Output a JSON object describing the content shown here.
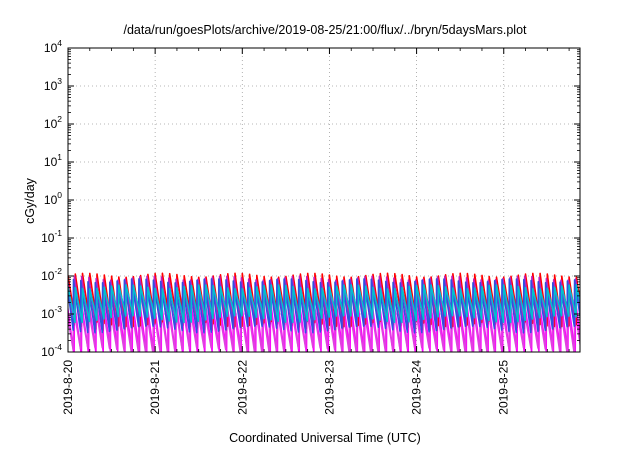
{
  "chart_data": {
    "type": "line",
    "title": "/data/run/goesPlots/archive/2019-08-25/21:00/flux/../bryn/5daysMars.plot",
    "xlabel": "Coordinated Universal Time (UTC)",
    "ylabel": "cGy/day",
    "y_scale": "log",
    "ylim": [
      0.0001,
      10000
    ],
    "y_ticks": [
      {
        "base": "10",
        "exp": "-4",
        "value": 0.0001
      },
      {
        "base": "10",
        "exp": "-3",
        "value": 0.001
      },
      {
        "base": "10",
        "exp": "-2",
        "value": 0.01
      },
      {
        "base": "10",
        "exp": "-1",
        "value": 0.1
      },
      {
        "base": "10",
        "exp": "0",
        "value": 1
      },
      {
        "base": "10",
        "exp": "1",
        "value": 10
      },
      {
        "base": "10",
        "exp": "2",
        "value": 100
      },
      {
        "base": "10",
        "exp": "3",
        "value": 1000
      },
      {
        "base": "10",
        "exp": "4",
        "value": 10000
      }
    ],
    "x_start": "2019-08-20 00:00",
    "x_end": "2019-08-25 21:00",
    "x_ticks": [
      "2019-8-20",
      "2019-8-21",
      "2019-8-22",
      "2019-8-23",
      "2019-8-24",
      "2019-8-25"
    ],
    "grid": true,
    "legend": "none",
    "oscillation": {
      "cycles_per_day": 12,
      "description": "sawtooth pattern repeating roughly every 2 hours"
    },
    "series": [
      {
        "color": "#ff0000",
        "peak": 0.0105,
        "trough": 0.00058
      },
      {
        "color": "#c020c0",
        "peak": 0.0088,
        "trough": 0.00046
      },
      {
        "color": "#3050e0",
        "peak": 0.0075,
        "trough": 0.0004
      },
      {
        "color": "#00c0d0",
        "peak": 0.0052,
        "trough": 0.00075
      },
      {
        "color": "#ff00ff",
        "peak": 0.0021,
        "trough": 9e-05
      },
      {
        "color": "#e040e0",
        "peak": 0.0016,
        "trough": 0.00011
      }
    ]
  }
}
